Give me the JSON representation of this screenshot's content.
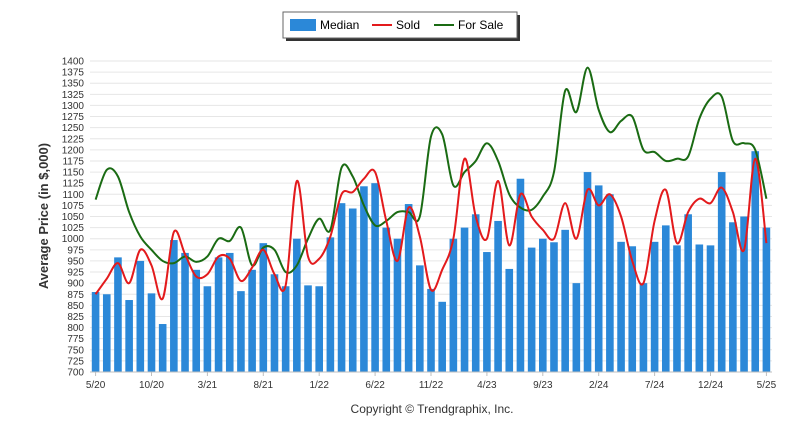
{
  "chart_data": {
    "type": "bar",
    "ylabel": "Average Price (in $,000)",
    "ylim": [
      700,
      1400
    ],
    "yticks": [
      700,
      725,
      750,
      775,
      800,
      825,
      850,
      875,
      900,
      925,
      950,
      975,
      1000,
      1025,
      1050,
      1075,
      1100,
      1125,
      1150,
      1175,
      1200,
      1225,
      1250,
      1275,
      1300,
      1325,
      1350,
      1375,
      1400
    ],
    "grid": true,
    "legend_position": "top-center",
    "x_tick_labels": [
      "5/20",
      "10/20",
      "3/21",
      "8/21",
      "1/22",
      "6/22",
      "11/22",
      "4/23",
      "9/23",
      "2/24",
      "7/24",
      "12/24",
      "5/25"
    ],
    "categories": [
      "5/20",
      "6/20",
      "7/20",
      "8/20",
      "9/20",
      "10/20",
      "11/20",
      "12/20",
      "1/21",
      "2/21",
      "3/21",
      "4/21",
      "5/21",
      "6/21",
      "7/21",
      "8/21",
      "9/21",
      "10/21",
      "11/21",
      "12/21",
      "1/22",
      "2/22",
      "3/22",
      "4/22",
      "5/22",
      "6/22",
      "7/22",
      "8/22",
      "9/22",
      "10/22",
      "11/22",
      "12/22",
      "1/23",
      "2/23",
      "3/23",
      "4/23",
      "5/23",
      "6/23",
      "7/23",
      "8/23",
      "9/23",
      "10/23",
      "11/23",
      "12/23",
      "1/24",
      "2/24",
      "3/24",
      "4/24",
      "5/24",
      "6/24",
      "7/24",
      "8/24",
      "9/24",
      "10/24",
      "11/24",
      "12/24",
      "1/25",
      "2/25",
      "3/25",
      "4/25",
      "5/25"
    ],
    "series": [
      {
        "name": "Median",
        "kind": "bar",
        "color": "#2b88d8",
        "values": [
          880,
          875,
          958,
          862,
          950,
          877,
          808,
          997,
          968,
          930,
          893,
          958,
          968,
          882,
          930,
          990,
          920,
          893,
          1000,
          895,
          893,
          1003,
          1080,
          1068,
          1118,
          1125,
          1025,
          1000,
          1078,
          940,
          887,
          858,
          1000,
          1025,
          1055,
          970,
          1040,
          932,
          1135,
          980,
          1000,
          992,
          1020,
          900,
          1150,
          1120,
          1100,
          993,
          983,
          900,
          993,
          1030,
          985,
          1055,
          987,
          985,
          1150,
          1037,
          1050,
          1197,
          1025
        ]
      },
      {
        "name": "Sold",
        "kind": "line",
        "color": "#e31a1c",
        "values": [
          875,
          910,
          945,
          900,
          975,
          940,
          865,
          1015,
          965,
          915,
          920,
          960,
          955,
          905,
          935,
          975,
          920,
          895,
          1130,
          960,
          955,
          1005,
          1100,
          1105,
          1135,
          1150,
          1040,
          950,
          1070,
          1005,
          885,
          930,
          1000,
          1180,
          1050,
          1000,
          1130,
          985,
          1100,
          1050,
          1020,
          1000,
          1080,
          1000,
          1110,
          1075,
          1100,
          1050,
          950,
          900,
          1040,
          1110,
          990,
          1060,
          1090,
          1080,
          1115,
          1060,
          975,
          1180,
          990
        ]
      },
      {
        "name": "For Sale",
        "kind": "line",
        "color": "#1a6b13",
        "values": [
          1088,
          1155,
          1140,
          1060,
          1005,
          975,
          950,
          945,
          960,
          948,
          960,
          1000,
          995,
          1025,
          940,
          980,
          975,
          925,
          940,
          1000,
          1045,
          1020,
          1160,
          1140,
          1075,
          1030,
          1040,
          1060,
          1060,
          1050,
          1230,
          1235,
          1120,
          1150,
          1175,
          1215,
          1175,
          1100,
          1070,
          1065,
          1095,
          1150,
          1333,
          1285,
          1385,
          1290,
          1240,
          1265,
          1275,
          1200,
          1195,
          1175,
          1180,
          1185,
          1270,
          1315,
          1320,
          1220,
          1215,
          1200,
          1090
        ]
      }
    ],
    "copyright": "Copyright © Trendgraphix, Inc."
  }
}
